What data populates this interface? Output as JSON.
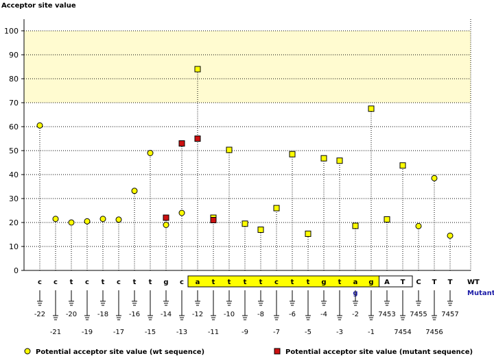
{
  "chart_data": {
    "type": "scatter",
    "ylabel": "Acceptor site value",
    "ylim": [
      0,
      100
    ],
    "yticks": [
      0,
      10,
      20,
      30,
      40,
      50,
      60,
      70,
      80,
      90,
      100
    ],
    "grid": true,
    "highlight_band": [
      70,
      100
    ],
    "positions": [
      {
        "wt": "c",
        "mut": "",
        "label": "-22",
        "boxed": false,
        "wt_value": 60.5,
        "mut_value": null
      },
      {
        "wt": "c",
        "mut": "",
        "label": "-21",
        "boxed": false,
        "wt_value": 21.5,
        "mut_value": null
      },
      {
        "wt": "t",
        "mut": "",
        "label": "-20",
        "boxed": false,
        "wt_value": 20.0,
        "mut_value": null
      },
      {
        "wt": "c",
        "mut": "",
        "label": "-19",
        "boxed": false,
        "wt_value": 20.5,
        "mut_value": null
      },
      {
        "wt": "t",
        "mut": "",
        "label": "-18",
        "boxed": false,
        "wt_value": 21.5,
        "mut_value": null
      },
      {
        "wt": "c",
        "mut": "",
        "label": "-17",
        "boxed": false,
        "wt_value": 21.2,
        "mut_value": null
      },
      {
        "wt": "t",
        "mut": "",
        "label": "-16",
        "boxed": false,
        "wt_value": 33.2,
        "mut_value": null
      },
      {
        "wt": "t",
        "mut": "",
        "label": "-15",
        "boxed": false,
        "wt_value": 49.0,
        "mut_value": null
      },
      {
        "wt": "g",
        "mut": "",
        "label": "-14",
        "boxed": false,
        "wt_value": 19.0,
        "mut_value": 22.0
      },
      {
        "wt": "c",
        "mut": "",
        "label": "-13",
        "boxed": false,
        "wt_value": 24.0,
        "mut_value": 53.0
      },
      {
        "wt": "a",
        "mut": "",
        "label": "-12",
        "boxed": true,
        "wt_value": 84.0,
        "mut_value": 55.0
      },
      {
        "wt": "t",
        "mut": "",
        "label": "-11",
        "boxed": true,
        "wt_value": 22.0,
        "mut_value": 21.0
      },
      {
        "wt": "t",
        "mut": "",
        "label": "-10",
        "boxed": true,
        "wt_value": 50.3,
        "mut_value": null
      },
      {
        "wt": "t",
        "mut": "",
        "label": "-9",
        "boxed": true,
        "wt_value": 19.5,
        "mut_value": null
      },
      {
        "wt": "t",
        "mut": "",
        "label": "-8",
        "boxed": true,
        "wt_value": 17.0,
        "mut_value": null
      },
      {
        "wt": "c",
        "mut": "",
        "label": "-7",
        "boxed": true,
        "wt_value": 26.0,
        "mut_value": null
      },
      {
        "wt": "t",
        "mut": "",
        "label": "-6",
        "boxed": true,
        "wt_value": 48.5,
        "mut_value": null
      },
      {
        "wt": "t",
        "mut": "",
        "label": "-5",
        "boxed": true,
        "wt_value": 15.3,
        "mut_value": null
      },
      {
        "wt": "g",
        "mut": "",
        "label": "-4",
        "boxed": true,
        "wt_value": 46.8,
        "mut_value": null
      },
      {
        "wt": "t",
        "mut": "",
        "label": "-3",
        "boxed": true,
        "wt_value": 45.8,
        "mut_value": null
      },
      {
        "wt": "a",
        "mut": "g",
        "label": "-2",
        "boxed": true,
        "wt_value": 18.6,
        "mut_value": null
      },
      {
        "wt": "g",
        "mut": "",
        "label": "-1",
        "boxed": true,
        "wt_value": 67.5,
        "mut_value": null
      },
      {
        "wt": "A",
        "mut": "",
        "label": "7453",
        "boxed": true,
        "wt_value": 21.3,
        "mut_value": null
      },
      {
        "wt": "T",
        "mut": "",
        "label": "7454",
        "boxed": true,
        "wt_value": 43.8,
        "mut_value": null
      },
      {
        "wt": "C",
        "mut": "",
        "label": "7455",
        "boxed": false,
        "wt_value": 18.5,
        "mut_value": null
      },
      {
        "wt": "T",
        "mut": "",
        "label": "7456",
        "boxed": false,
        "wt_value": 38.5,
        "mut_value": null
      },
      {
        "wt": "T",
        "mut": "",
        "label": "7457",
        "boxed": false,
        "wt_value": 14.5,
        "mut_value": null
      }
    ],
    "row_labels": {
      "wt": "WT",
      "mutant": "Mutant"
    },
    "legend": [
      {
        "name": "Potential acceptor site value (wt sequence)",
        "color": "#ffff00",
        "shape": "circle"
      },
      {
        "name": "Potential acceptor site value (mutant sequence)",
        "color": "#cc1111",
        "shape": "square"
      }
    ],
    "colors": {
      "band": "#fffbd0",
      "sequence_box": "#ffff00",
      "mutant_text": "#1a1aa6",
      "wt_marker": "#ffff00",
      "mut_marker": "#cc1111"
    }
  }
}
